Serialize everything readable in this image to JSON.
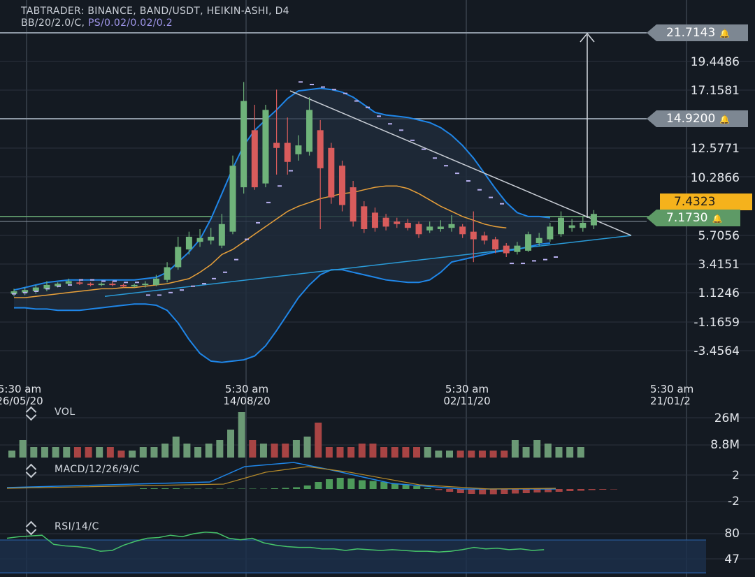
{
  "header": {
    "title": "TABTRADER: BINANCE, BAND/USDT, HEIKIN-ASHI, D4",
    "indicators_prefix": "BB/20/2.0/C, ",
    "indicators_ps": "PS/0.02/0.02/0.2"
  },
  "price_axis": {
    "labels": [
      "19.4486",
      "17.1581",
      "12.5771",
      "10.2866",
      "5.7056",
      "3.4151",
      "1.1246",
      "-1.1659",
      "-3.4564"
    ]
  },
  "price_tags": {
    "alert_high": "21.7143",
    "alert_mid": "14.9200",
    "current_orange": "7.4323",
    "current_green": "7.1730",
    "bell_icon": "bell-icon"
  },
  "time_axis": {
    "labels": [
      {
        "time": "5:30 am",
        "date": "26/05/20"
      },
      {
        "time": "5:30 am",
        "date": "14/08/20"
      },
      {
        "time": "5:30 am",
        "date": "02/11/20"
      },
      {
        "time": "5:30 am",
        "date": "21/01/2"
      }
    ]
  },
  "volume_panel": {
    "label": "VOL",
    "axis": [
      "26M",
      "8.8M"
    ]
  },
  "macd_panel": {
    "label": "MACD/12/26/9/C",
    "axis": [
      "2",
      "-2"
    ]
  },
  "rsi_panel": {
    "label": "RSI/14/C",
    "axis": [
      "80",
      "47"
    ]
  },
  "colors": {
    "background": "#141a22",
    "up": "#6fb37a",
    "down": "#d95c5c",
    "bollinger": "#1f86e8",
    "ma": "#e8a03a",
    "trendline": "#2a9bd8",
    "rsi": "#46c46a",
    "sar": "#b8b0f0"
  },
  "chart_data": {
    "type": "candlestick",
    "candles": [
      {
        "o": 1.1,
        "c": 1.3,
        "h": 1.5,
        "l": 0.9
      },
      {
        "o": 1.2,
        "c": 1.4,
        "h": 1.6,
        "l": 1.0
      },
      {
        "o": 1.3,
        "c": 1.6,
        "h": 1.8,
        "l": 1.1
      },
      {
        "o": 1.5,
        "c": 1.8,
        "h": 2.1,
        "l": 1.3
      },
      {
        "o": 1.7,
        "c": 1.9,
        "h": 2.0,
        "l": 1.6
      },
      {
        "o": 1.9,
        "c": 2.1,
        "h": 2.3,
        "l": 1.8
      },
      {
        "o": 2.0,
        "c": 1.9,
        "h": 2.2,
        "l": 1.8
      },
      {
        "o": 1.9,
        "c": 1.8,
        "h": 2.0,
        "l": 1.7
      },
      {
        "o": 1.8,
        "c": 1.9,
        "h": 2.0,
        "l": 1.7
      },
      {
        "o": 1.9,
        "c": 1.8,
        "h": 2.1,
        "l": 1.7
      },
      {
        "o": 1.8,
        "c": 1.7,
        "h": 1.9,
        "l": 1.6
      },
      {
        "o": 1.7,
        "c": 1.8,
        "h": 1.9,
        "l": 1.6
      },
      {
        "o": 1.8,
        "c": 1.9,
        "h": 2.1,
        "l": 1.6
      },
      {
        "o": 1.8,
        "c": 2.3,
        "h": 2.6,
        "l": 1.7
      },
      {
        "o": 2.2,
        "c": 3.2,
        "h": 3.6,
        "l": 2.0
      },
      {
        "o": 3.2,
        "c": 4.8,
        "h": 5.6,
        "l": 3.0
      },
      {
        "o": 4.6,
        "c": 5.6,
        "h": 6.0,
        "l": 4.2
      },
      {
        "o": 5.2,
        "c": 5.5,
        "h": 6.2,
        "l": 4.8
      },
      {
        "o": 5.3,
        "c": 5.6,
        "h": 6.3,
        "l": 5.0
      },
      {
        "o": 4.9,
        "c": 6.6,
        "h": 7.4,
        "l": 4.7
      },
      {
        "o": 6.0,
        "c": 11.2,
        "h": 12.0,
        "l": 5.8
      },
      {
        "o": 9.5,
        "c": 16.3,
        "h": 17.8,
        "l": 9.0
      },
      {
        "o": 14.0,
        "c": 9.5,
        "h": 16.0,
        "l": 9.3
      },
      {
        "o": 9.8,
        "c": 15.6,
        "h": 16.0,
        "l": 9.5
      },
      {
        "o": 13.0,
        "c": 12.6,
        "h": 17.2,
        "l": 10.5
      },
      {
        "o": 13.0,
        "c": 11.5,
        "h": 15.0,
        "l": 10.5
      },
      {
        "o": 12.1,
        "c": 12.8,
        "h": 13.6,
        "l": 11.6
      },
      {
        "o": 12.3,
        "c": 15.6,
        "h": 16.6,
        "l": 12.0
      },
      {
        "o": 14.0,
        "c": 11.0,
        "h": 14.8,
        "l": 6.2
      },
      {
        "o": 12.6,
        "c": 8.7,
        "h": 13.0,
        "l": 8.2
      },
      {
        "o": 11.2,
        "c": 8.1,
        "h": 11.6,
        "l": 7.6
      },
      {
        "o": 9.5,
        "c": 6.8,
        "h": 10.0,
        "l": 6.4
      },
      {
        "o": 8.0,
        "c": 6.2,
        "h": 8.4,
        "l": 5.9
      },
      {
        "o": 7.5,
        "c": 6.3,
        "h": 7.9,
        "l": 6.0
      },
      {
        "o": 7.1,
        "c": 6.4,
        "h": 7.4,
        "l": 6.1
      },
      {
        "o": 6.8,
        "c": 6.6,
        "h": 7.1,
        "l": 6.3
      },
      {
        "o": 6.7,
        "c": 6.3,
        "h": 7.0,
        "l": 6.1
      },
      {
        "o": 6.6,
        "c": 5.8,
        "h": 6.8,
        "l": 5.5
      },
      {
        "o": 6.1,
        "c": 6.4,
        "h": 6.8,
        "l": 5.9
      },
      {
        "o": 6.2,
        "c": 6.4,
        "h": 6.9,
        "l": 6.0
      },
      {
        "o": 6.3,
        "c": 6.6,
        "h": 7.3,
        "l": 6.0
      },
      {
        "o": 6.4,
        "c": 5.8,
        "h": 6.6,
        "l": 5.5
      },
      {
        "o": 6.0,
        "c": 5.4,
        "h": 7.6,
        "l": 3.6
      },
      {
        "o": 5.7,
        "c": 5.3,
        "h": 6.0,
        "l": 5.0
      },
      {
        "o": 5.4,
        "c": 4.6,
        "h": 5.6,
        "l": 4.3
      },
      {
        "o": 4.9,
        "c": 4.3,
        "h": 5.1,
        "l": 4.0
      },
      {
        "o": 4.4,
        "c": 4.9,
        "h": 5.2,
        "l": 4.2
      },
      {
        "o": 4.5,
        "c": 5.8,
        "h": 6.0,
        "l": 4.4
      },
      {
        "o": 5.1,
        "c": 5.5,
        "h": 5.9,
        "l": 4.9
      },
      {
        "o": 5.4,
        "c": 6.4,
        "h": 6.7,
        "l": 5.2
      },
      {
        "o": 5.8,
        "c": 7.1,
        "h": 7.6,
        "l": 5.6
      },
      {
        "o": 6.3,
        "c": 6.5,
        "h": 7.0,
        "l": 6.0
      },
      {
        "o": 6.3,
        "c": 6.7,
        "h": 7.2,
        "l": 6.0
      },
      {
        "o": 6.5,
        "c": 7.4,
        "h": 7.7,
        "l": 6.2
      }
    ],
    "bollinger_upper": [
      1.4,
      1.6,
      1.8,
      2.0,
      2.1,
      2.2,
      2.2,
      2.2,
      2.2,
      2.2,
      2.2,
      2.2,
      2.3,
      2.4,
      2.8,
      3.6,
      4.4,
      5.4,
      7.0,
      9.0,
      11.0,
      12.8,
      14.0,
      14.8,
      15.6,
      16.5,
      17.1,
      17.2,
      17.3,
      17.2,
      17.0,
      16.6,
      16.0,
      15.4,
      15.2,
      15.1,
      15.0,
      14.8,
      14.6,
      14.2,
      13.6,
      12.8,
      11.8,
      10.6,
      9.4,
      8.3,
      7.5,
      7.2,
      7.2,
      7.1
    ],
    "bollinger_lower": [
      0.0,
      0.0,
      -0.1,
      -0.1,
      -0.2,
      -0.2,
      -0.2,
      -0.1,
      0.0,
      0.1,
      0.2,
      0.3,
      0.3,
      0.2,
      -0.2,
      -1.2,
      -2.5,
      -3.6,
      -4.2,
      -4.3,
      -4.2,
      -4.1,
      -3.8,
      -3.0,
      -1.8,
      -0.5,
      0.8,
      1.8,
      2.6,
      3.0,
      3.0,
      2.8,
      2.6,
      2.4,
      2.2,
      2.1,
      2.0,
      2.0,
      2.2,
      2.8,
      3.6,
      3.8,
      4.0,
      4.2,
      4.4,
      4.5,
      4.6,
      4.8,
      5.0,
      5.1
    ],
    "moving_average": [
      0.8,
      0.8,
      0.9,
      1.0,
      1.1,
      1.2,
      1.3,
      1.4,
      1.5,
      1.5,
      1.6,
      1.6,
      1.7,
      1.8,
      1.9,
      2.1,
      2.3,
      2.8,
      3.4,
      4.2,
      4.6,
      5.2,
      5.8,
      6.4,
      7.0,
      7.6,
      8.0,
      8.3,
      8.6,
      8.8,
      9.0,
      9.1,
      9.3,
      9.5,
      9.6,
      9.6,
      9.4,
      9.0,
      8.5,
      8.0,
      7.6,
      7.2,
      6.9,
      6.6,
      6.4,
      6.3
    ],
    "trendline_support": [
      {
        "x": 10,
        "y": 0.9
      },
      {
        "x": 56,
        "y": 5.7
      }
    ],
    "trendline_resistance": [
      {
        "x": 27,
        "y": 17.1
      },
      {
        "x": 56,
        "y": 5.7
      }
    ],
    "volume": [
      2,
      5,
      3,
      3,
      3,
      3,
      3,
      3,
      3,
      3,
      2,
      2,
      3,
      3,
      4,
      6,
      4,
      3,
      4,
      5,
      8,
      13,
      5,
      4,
      4,
      4,
      5,
      6,
      10,
      3,
      3,
      3,
      4,
      4,
      3,
      3,
      3,
      3,
      3,
      2,
      2,
      2,
      2,
      2,
      2,
      2,
      5,
      3,
      5,
      4,
      3,
      3,
      3
    ],
    "rsi": [
      74,
      76,
      77,
      78,
      66,
      64,
      63,
      61,
      57,
      58,
      65,
      70,
      74,
      75,
      78,
      76,
      80,
      82,
      81,
      74,
      72,
      74,
      68,
      65,
      63,
      62,
      62,
      60,
      60,
      58,
      60,
      59,
      58,
      59,
      58,
      57,
      57,
      56,
      57,
      59,
      62,
      60,
      61,
      59,
      60,
      58,
      59
    ]
  }
}
